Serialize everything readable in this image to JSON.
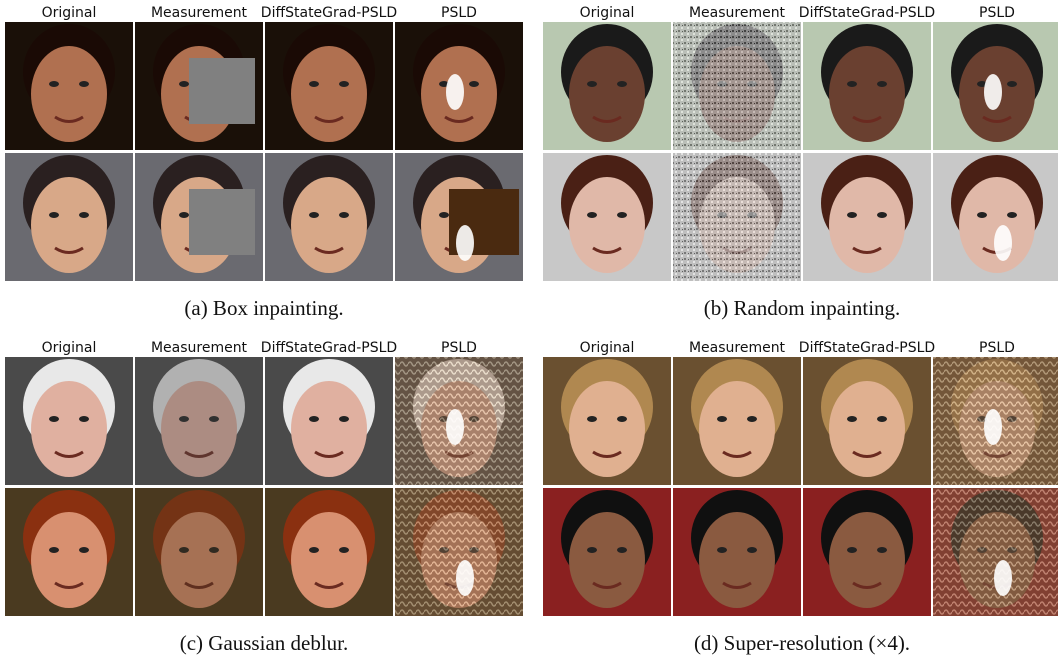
{
  "panels": [
    {
      "columns": [
        "Original",
        "Measurement",
        "DiffStateGrad-PSLD",
        "PSLD"
      ],
      "caption": "(a) Box inpainting."
    },
    {
      "columns": [
        "Original",
        "Measurement",
        "DiffStateGrad-PSLD",
        "PSLD"
      ],
      "caption": "(b) Random inpainting."
    },
    {
      "columns": [
        "Original",
        "Measurement",
        "DiffStateGrad-PSLD",
        "PSLD"
      ],
      "caption": "(c) Gaussian deblur."
    },
    {
      "columns": [
        "Original",
        "Measurement",
        "DiffStateGrad-PSLD",
        "PSLD"
      ],
      "caption": "(d) Super-resolution (×4)."
    }
  ]
}
